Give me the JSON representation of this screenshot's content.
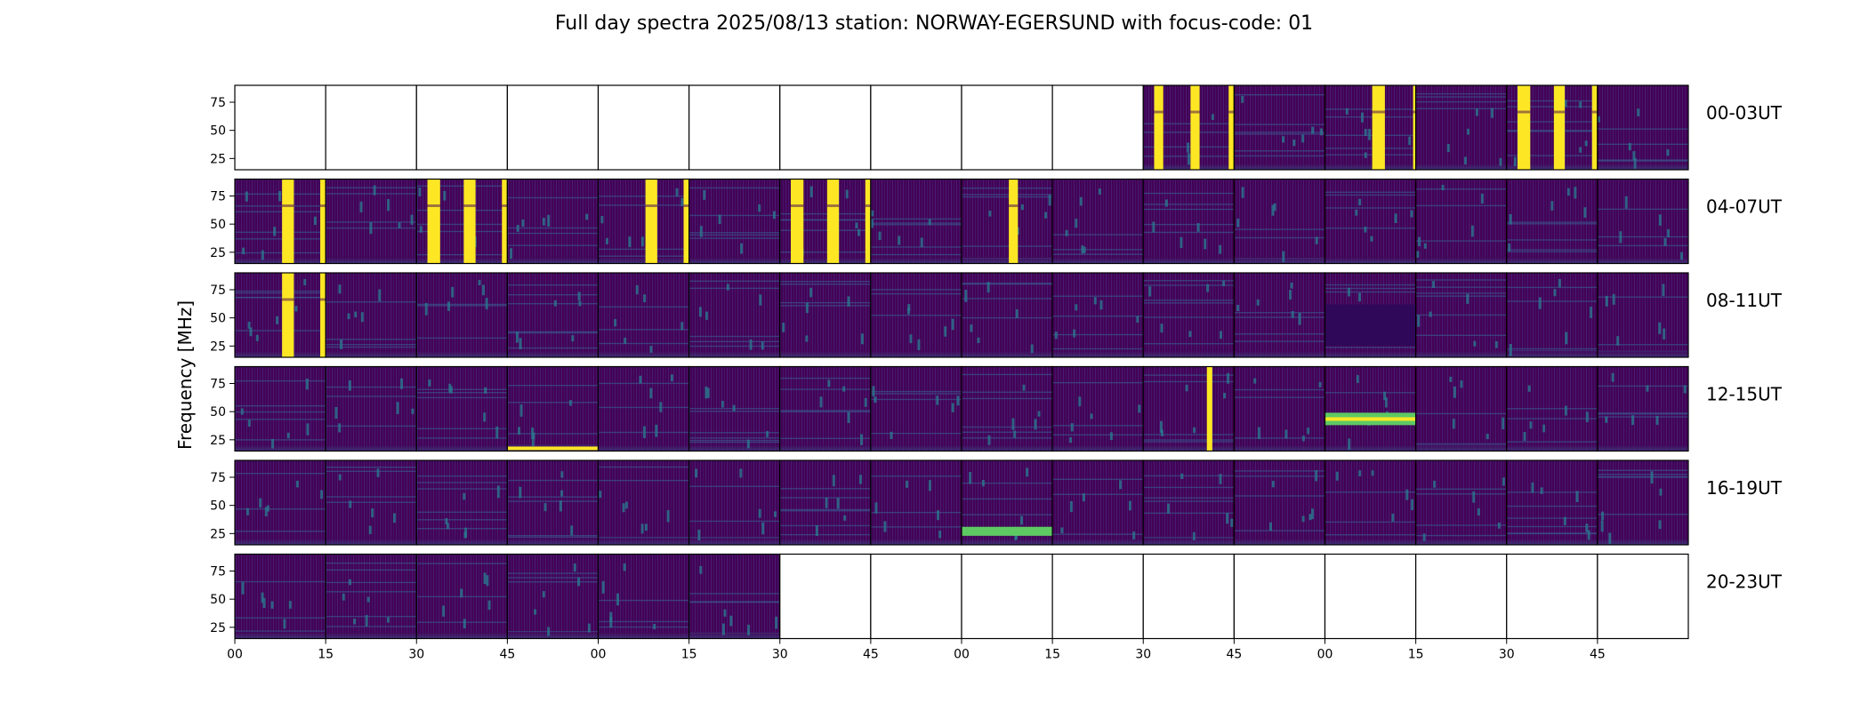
{
  "chart_data": {
    "type": "heatmap",
    "title": "Full day spectra 2025/08/13 station: NORWAY-EGERSUND with focus-code: 01",
    "ylabel": "Frequency [MHz]",
    "ylim": [
      15,
      90
    ],
    "yticks": [
      25,
      50,
      75
    ],
    "xticks": [
      "00",
      "15",
      "30",
      "45",
      "00",
      "15",
      "30",
      "45",
      "00",
      "15",
      "30",
      "45",
      "00",
      "15",
      "30",
      "45"
    ],
    "columns_per_row": 16,
    "minutes_per_panel": 15,
    "colormap": "viridis",
    "colors": {
      "low": "#440154",
      "mid": "#3b528b",
      "high": "#fde725",
      "frame": "#000000"
    },
    "rows": [
      {
        "label": "00-03UT",
        "panels": [
          "empty",
          "empty",
          "empty",
          "empty",
          "empty",
          "empty",
          "empty",
          "empty",
          "empty",
          "empty",
          "data",
          "data",
          "data",
          "data",
          "data",
          "data"
        ]
      },
      {
        "label": "04-07UT",
        "panels": [
          "data",
          "data",
          "data",
          "data",
          "data",
          "data",
          "data",
          "data",
          "data",
          "data",
          "data",
          "data",
          "data",
          "data",
          "data",
          "data"
        ]
      },
      {
        "label": "08-11UT",
        "panels": [
          "data",
          "data",
          "data",
          "data",
          "data",
          "data",
          "data",
          "data",
          "data",
          "data",
          "data",
          "data",
          "data",
          "data",
          "data",
          "data"
        ]
      },
      {
        "label": "12-15UT",
        "panels": [
          "data",
          "data",
          "data",
          "data",
          "data",
          "data",
          "data",
          "data",
          "data",
          "data",
          "data",
          "data",
          "data",
          "data",
          "data",
          "data"
        ]
      },
      {
        "label": "16-19UT",
        "panels": [
          "data",
          "data",
          "data",
          "data",
          "data",
          "data",
          "data",
          "data",
          "data",
          "data",
          "data",
          "data",
          "data",
          "data",
          "data",
          "data"
        ]
      },
      {
        "label": "20-23UT",
        "panels": [
          "data",
          "data",
          "data",
          "data",
          "data",
          "data",
          "empty",
          "empty",
          "empty",
          "empty",
          "empty",
          "empty",
          "empty",
          "empty",
          "empty",
          "empty"
        ]
      }
    ]
  }
}
